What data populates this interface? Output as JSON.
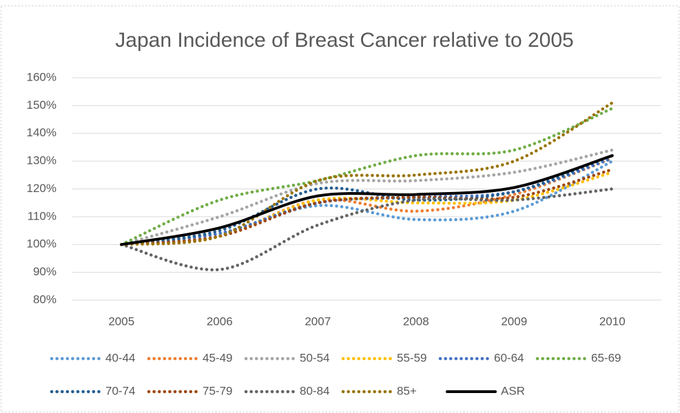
{
  "chart_data": {
    "type": "line",
    "title": "Japan Incidence of Breast Cancer relative to 2005",
    "categories": [
      "2005",
      "2006",
      "2007",
      "2008",
      "2009",
      "2010"
    ],
    "ylim": [
      80,
      160
    ],
    "yticks": [
      {
        "value": 80,
        "label": "80%"
      },
      {
        "value": 90,
        "label": "90%"
      },
      {
        "value": 100,
        "label": "100%"
      },
      {
        "value": 110,
        "label": "110%"
      },
      {
        "value": 120,
        "label": "120%"
      },
      {
        "value": 130,
        "label": "130%"
      },
      {
        "value": 140,
        "label": "140%"
      },
      {
        "value": 150,
        "label": "150%"
      },
      {
        "value": 160,
        "label": "160%"
      }
    ],
    "grid": true,
    "legend": "bottom",
    "series": [
      {
        "name": "40-44",
        "color": "#5b9bd5",
        "style": "dotted",
        "values": [
          100,
          104,
          114,
          109,
          112,
          130
        ]
      },
      {
        "name": "45-49",
        "color": "#ed7d31",
        "style": "dotted",
        "values": [
          100,
          103,
          116,
          112,
          118,
          131
        ]
      },
      {
        "name": "50-54",
        "color": "#a5a5a5",
        "style": "dotted",
        "values": [
          100,
          110,
          122,
          123,
          126,
          134
        ]
      },
      {
        "name": "55-59",
        "color": "#ffc000",
        "style": "dotted",
        "values": [
          100,
          103,
          116,
          115,
          116,
          126
        ]
      },
      {
        "name": "60-64",
        "color": "#4472c4",
        "style": "dotted",
        "values": [
          100,
          104,
          115,
          117,
          119,
          131
        ]
      },
      {
        "name": "65-69",
        "color": "#70ad47",
        "style": "dotted",
        "values": [
          100,
          116,
          123,
          132,
          134,
          149
        ]
      },
      {
        "name": "70-74",
        "color": "#255e91",
        "style": "dotted",
        "values": [
          100,
          105,
          120,
          116,
          119,
          132
        ]
      },
      {
        "name": "75-79",
        "color": "#9e480e",
        "style": "dotted",
        "values": [
          100,
          103,
          115,
          117,
          117,
          127
        ]
      },
      {
        "name": "80-84",
        "color": "#636363",
        "style": "dotted",
        "values": [
          100,
          91,
          107,
          116,
          116,
          120
        ]
      },
      {
        "name": "85+",
        "color": "#997300",
        "style": "dotted",
        "values": [
          100,
          103,
          123,
          125,
          130,
          151
        ]
      },
      {
        "name": "ASR",
        "color": "#000000",
        "style": "solid",
        "values": [
          100,
          106,
          117.5,
          118,
          120.5,
          132
        ]
      }
    ]
  }
}
